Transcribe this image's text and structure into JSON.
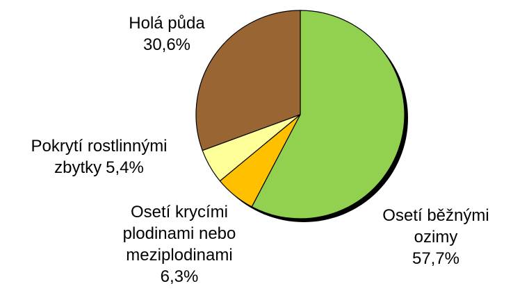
{
  "chart_data": {
    "type": "pie",
    "categories": [
      "Osetí běžnými ozimy",
      "Osetí krycími plodinami nebo meziplodinami",
      "Pokrytí rostlinnými zbytky",
      "Holá půda"
    ],
    "values": [
      57.7,
      6.3,
      5.4,
      30.6
    ],
    "value_labels": [
      "57,7%",
      "6,3%",
      "5,4%",
      "30,6%"
    ],
    "colors": [
      "#92d050",
      "#ffc000",
      "#ffff99",
      "#996633"
    ]
  }
}
